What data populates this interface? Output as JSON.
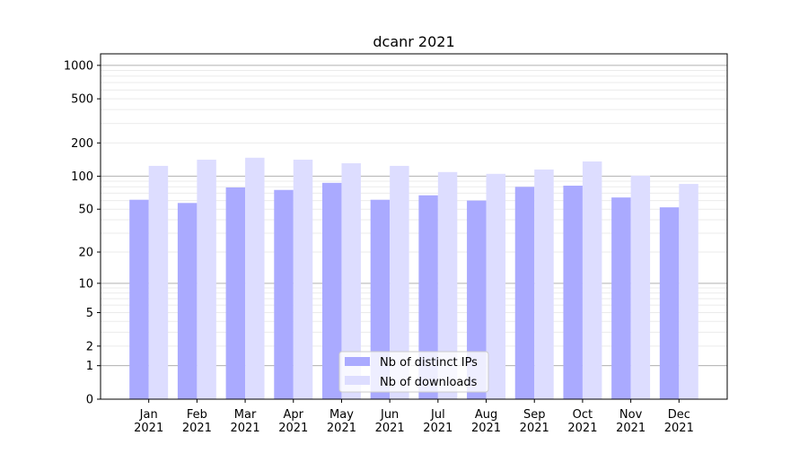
{
  "chart_data": {
    "type": "bar",
    "title": "dcanr 2021",
    "xlabel": "",
    "ylabel": "",
    "y_scale": "log10(y+1)",
    "ylim": [
      0,
      1270
    ],
    "yticks": [
      0,
      1,
      2,
      5,
      10,
      20,
      50,
      100,
      200,
      500,
      1000
    ],
    "ytick_labels": [
      "0",
      "1",
      "2",
      "5",
      "10",
      "20",
      "50",
      "100",
      "200",
      "500",
      "1000"
    ],
    "grid": true,
    "legend_position": "bottom-center",
    "categories": [
      "Jan\n2021",
      "Feb\n2021",
      "Mar\n2021",
      "Apr\n2021",
      "May\n2021",
      "Jun\n2021",
      "Jul\n2021",
      "Aug\n2021",
      "Sep\n2021",
      "Oct\n2021",
      "Nov\n2021",
      "Dec\n2021"
    ],
    "series": [
      {
        "name": "Nb of distinct IPs",
        "color": "#aaaaff",
        "values": [
          61,
          57,
          79,
          75,
          87,
          61,
          67,
          60,
          80,
          82,
          64,
          52
        ]
      },
      {
        "name": "Nb of downloads",
        "color": "#ddddff",
        "values": [
          124,
          141,
          147,
          141,
          131,
          124,
          109,
          105,
          115,
          136,
          101,
          85
        ]
      }
    ]
  }
}
